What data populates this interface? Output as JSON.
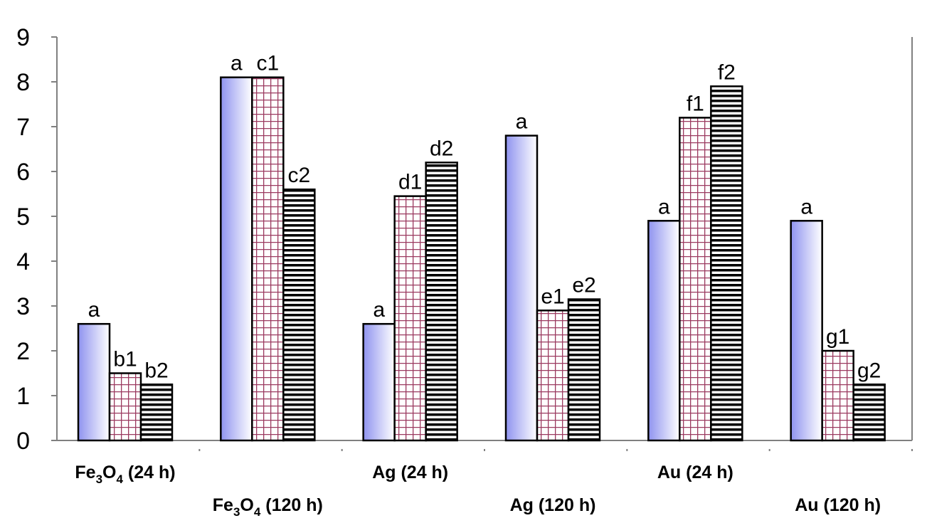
{
  "chart_data": {
    "type": "bar",
    "title": "",
    "xlabel": "",
    "ylabel": "",
    "ylim": [
      0,
      9
    ],
    "yticks": [
      "0",
      "1",
      "2",
      "3",
      "4",
      "5",
      "6",
      "7",
      "8",
      "9"
    ],
    "grid": false,
    "legend": "none",
    "categories": [
      {
        "base": "Fe",
        "sub1": "3",
        "mid": "O",
        "sub2": "4",
        "suffix": " (24 h)"
      },
      {
        "base": "Fe",
        "sub1": "3",
        "mid": "O",
        "sub2": "4",
        "suffix": " (120 h)"
      },
      {
        "base": "Ag (24 h)",
        "sub1": "",
        "mid": "",
        "sub2": "",
        "suffix": ""
      },
      {
        "base": "Ag (120 h)",
        "sub1": "",
        "mid": "",
        "sub2": "",
        "suffix": ""
      },
      {
        "base": "Au (24 h)",
        "sub1": "",
        "mid": "",
        "sub2": "",
        "suffix": ""
      },
      {
        "base": "Au (120 h)",
        "sub1": "",
        "mid": "",
        "sub2": "",
        "suffix": ""
      }
    ],
    "series": [
      {
        "pattern": "gradient-blue",
        "values": [
          2.6,
          8.1,
          2.6,
          6.8,
          4.9,
          4.9
        ],
        "labels": [
          "a",
          "a",
          "a",
          "a",
          "a",
          "a"
        ]
      },
      {
        "pattern": "crosshatch-red",
        "values": [
          1.5,
          8.1,
          5.45,
          2.9,
          7.2,
          2.0
        ],
        "labels": [
          "b1",
          "c1",
          "d1",
          "e1",
          "f1",
          "g1"
        ]
      },
      {
        "pattern": "horizontal-stripes-black",
        "values": [
          1.25,
          5.6,
          6.2,
          3.15,
          7.9,
          1.25
        ],
        "labels": [
          "b2",
          "c2",
          "d2",
          "e2",
          "f2",
          "g2"
        ]
      }
    ],
    "colors": {
      "axis": "#808080",
      "bar_border": "#000000",
      "gradient_dark": "#8f93ef",
      "gradient_light": "#ffffff",
      "hatch_line": "#9b3a60",
      "stripe": "#000000"
    }
  }
}
